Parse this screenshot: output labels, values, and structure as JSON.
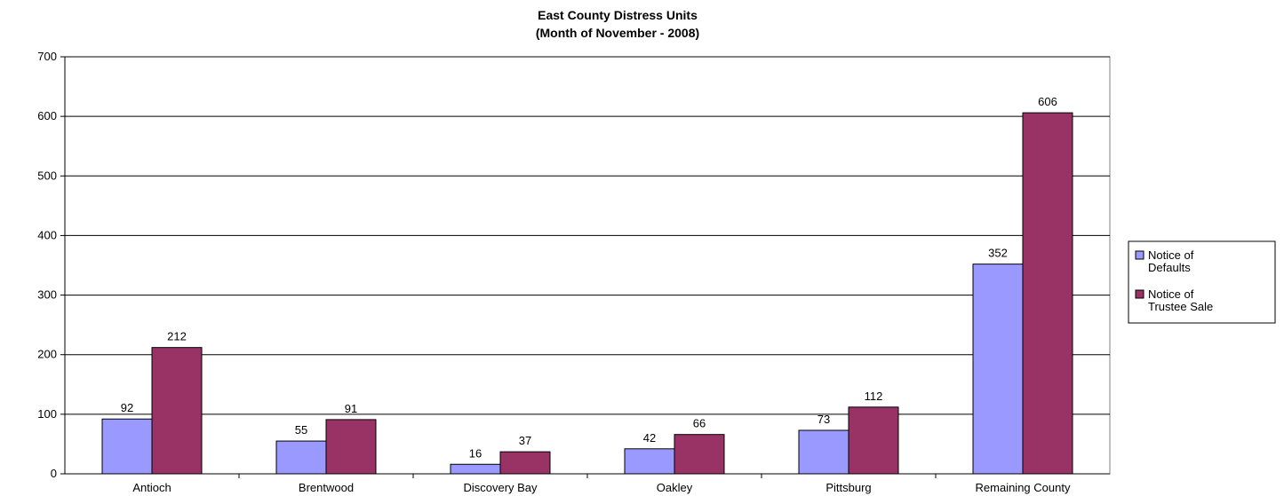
{
  "chart_data": {
    "type": "bar",
    "title": "East County Distress Units",
    "subtitle": "(Month of November - 2008)",
    "xlabel": "",
    "ylabel": "",
    "ylim": [
      0,
      700
    ],
    "yticks": [
      0,
      100,
      200,
      300,
      400,
      500,
      600,
      700
    ],
    "grid": true,
    "legend_position": "right",
    "categories": [
      "Antioch",
      "Brentwood",
      "Discovery Bay",
      "Oakley",
      "Pittsburg",
      "Remaining County"
    ],
    "series": [
      {
        "name": "Notice of Defaults",
        "legend_lines": [
          "Notice of",
          "Defaults"
        ],
        "color": "#9999ff",
        "values": [
          92,
          55,
          16,
          42,
          73,
          352
        ]
      },
      {
        "name": "Notice of Trustee Sale",
        "legend_lines": [
          "Notice of",
          "Trustee Sale"
        ],
        "color": "#993366",
        "values": [
          212,
          91,
          37,
          66,
          112,
          606
        ]
      }
    ]
  }
}
